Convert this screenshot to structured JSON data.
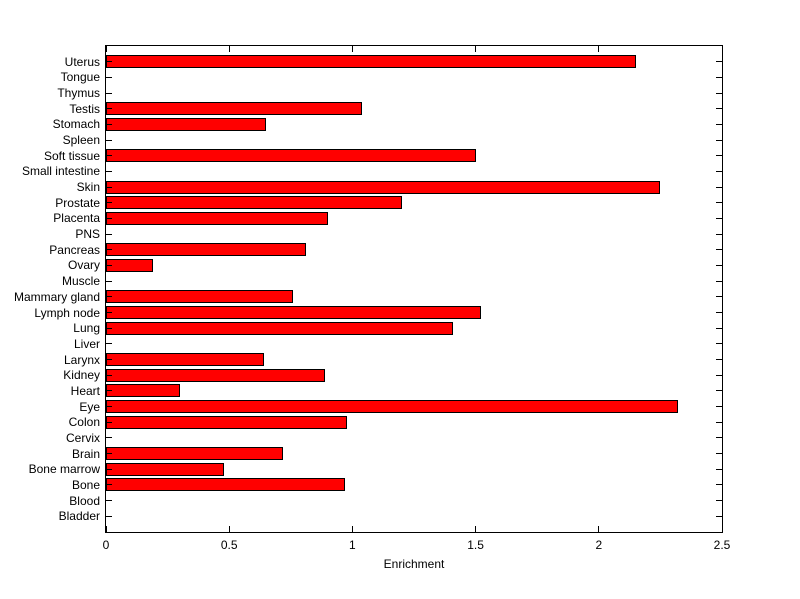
{
  "chart_data": {
    "type": "bar",
    "orientation": "horizontal",
    "title": "",
    "xlabel": "Enrichment",
    "ylabel": "",
    "xlim": [
      0,
      2.5
    ],
    "xticks": [
      0,
      0.5,
      1,
      1.5,
      2,
      2.5
    ],
    "xtick_labels": [
      "0",
      "0.5",
      "1",
      "1.5",
      "2",
      "2.5"
    ],
    "grid": false,
    "legend": null,
    "bar_color": "#ff0000",
    "bar_edge_color": "#000000",
    "background_color": "#ffffff",
    "categories": [
      "Uterus",
      "Tongue",
      "Thymus",
      "Testis",
      "Stomach",
      "Spleen",
      "Soft tissue",
      "Small intestine",
      "Skin",
      "Prostate",
      "Placenta",
      "PNS",
      "Pancreas",
      "Ovary",
      "Muscle",
      "Mammary gland",
      "Lymph node",
      "Lung",
      "Liver",
      "Larynx",
      "Kidney",
      "Heart",
      "Eye",
      "Colon",
      "Cervix",
      "Brain",
      "Bone marrow",
      "Bone",
      "Blood",
      "Bladder"
    ],
    "values": [
      2.15,
      0,
      0,
      1.04,
      0.65,
      0,
      1.5,
      0,
      2.25,
      1.2,
      0.9,
      0,
      0.81,
      0.19,
      0,
      0.76,
      1.52,
      1.41,
      0,
      0.64,
      0.89,
      0.3,
      2.32,
      0.98,
      0,
      0.72,
      0.48,
      0.97,
      0,
      0
    ]
  }
}
